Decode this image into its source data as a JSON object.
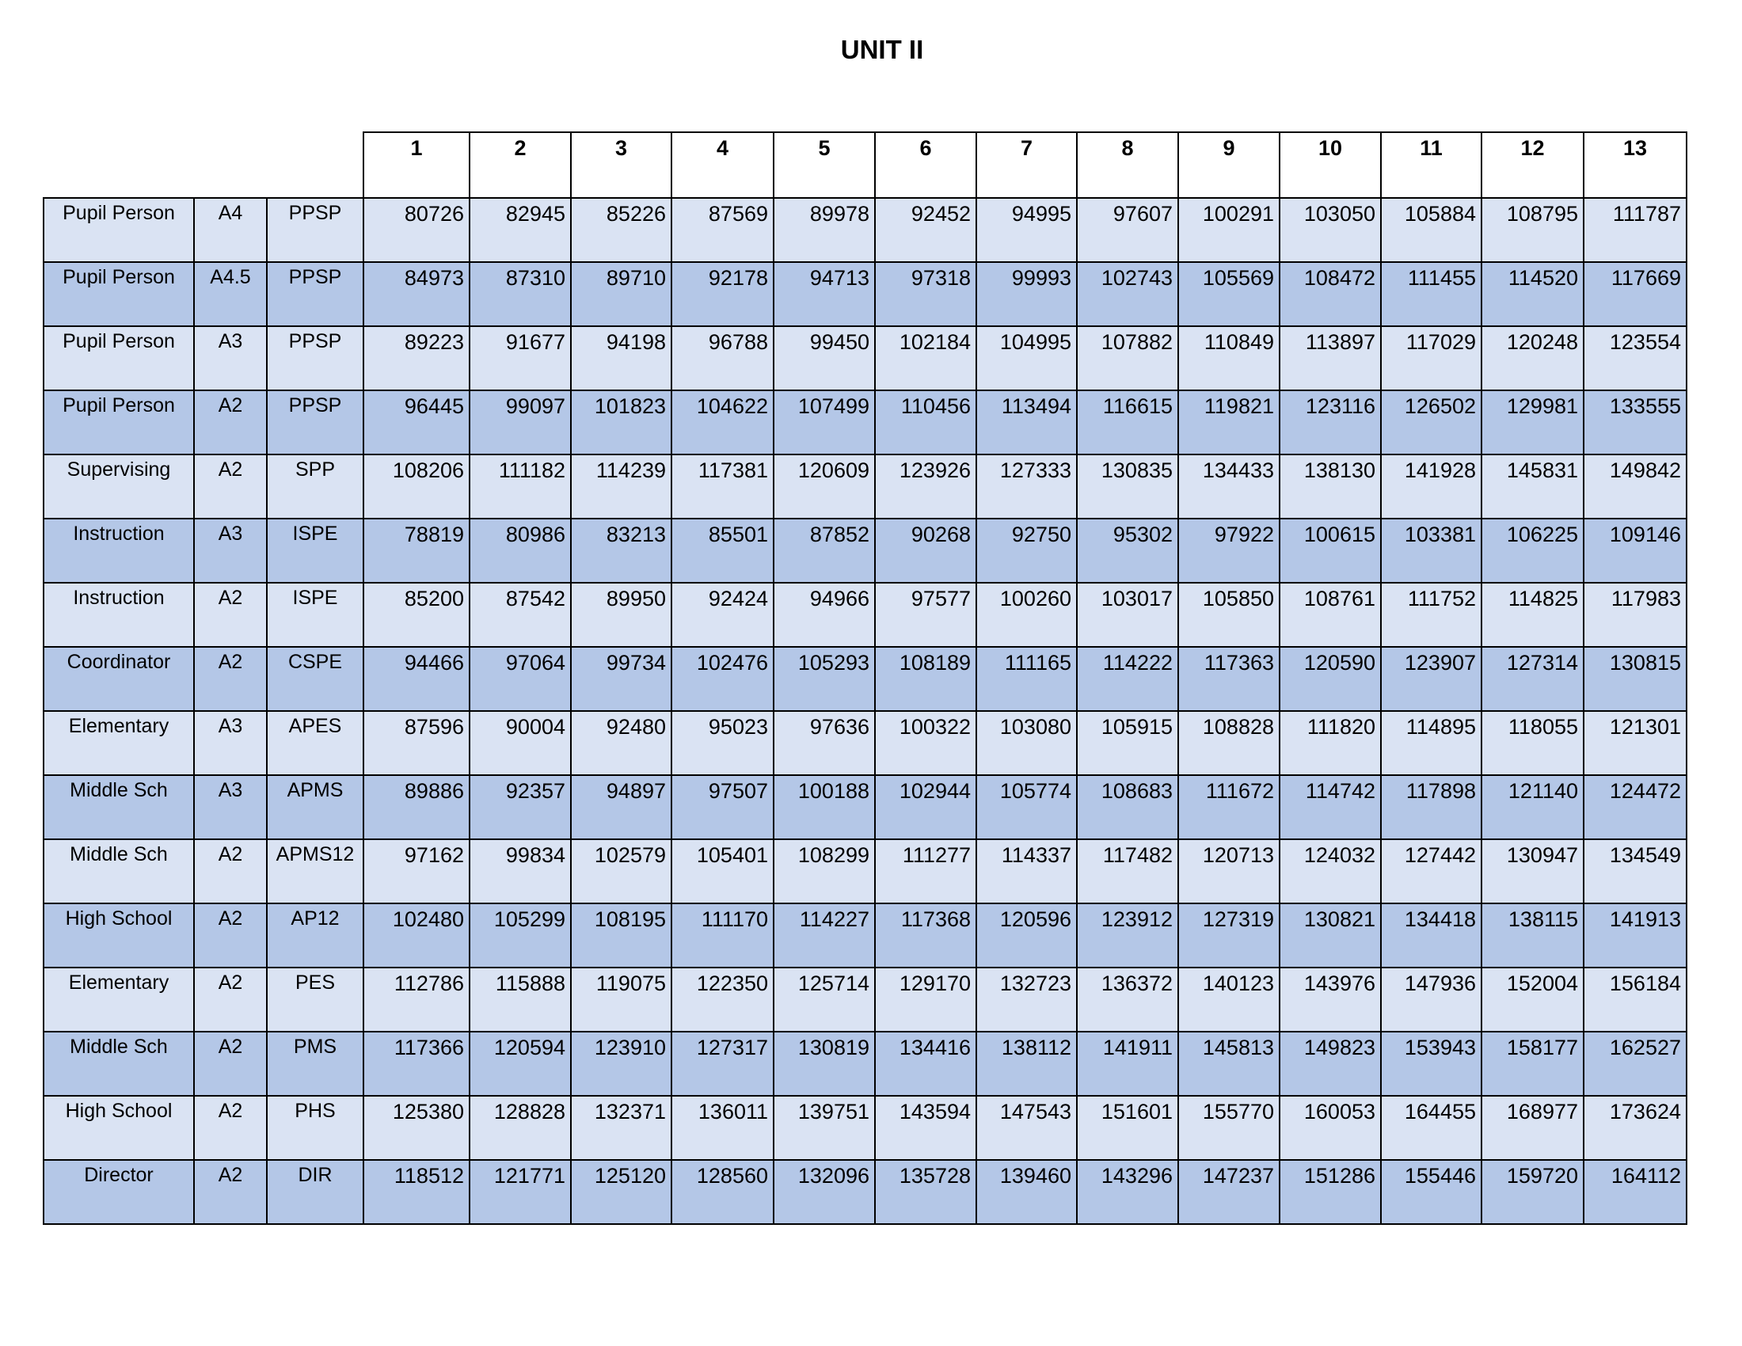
{
  "title": "UNIT II",
  "table": {
    "columns": [
      "1",
      "2",
      "3",
      "4",
      "5",
      "6",
      "7",
      "8",
      "9",
      "10",
      "11",
      "12",
      "13"
    ],
    "rows": [
      {
        "position": "Pupil Person",
        "level": "A4",
        "code": "PPSP",
        "values": [
          80726,
          82945,
          85226,
          87569,
          89978,
          92452,
          94995,
          97607,
          100291,
          103050,
          105884,
          108795,
          111787
        ]
      },
      {
        "position": "Pupil Person",
        "level": "A4.5",
        "code": "PPSP",
        "values": [
          84973,
          87310,
          89710,
          92178,
          94713,
          97318,
          99993,
          102743,
          105569,
          108472,
          111455,
          114520,
          117669
        ]
      },
      {
        "position": "Pupil Person",
        "level": "A3",
        "code": "PPSP",
        "values": [
          89223,
          91677,
          94198,
          96788,
          99450,
          102184,
          104995,
          107882,
          110849,
          113897,
          117029,
          120248,
          123554
        ]
      },
      {
        "position": "Pupil Person",
        "level": "A2",
        "code": "PPSP",
        "values": [
          96445,
          99097,
          101823,
          104622,
          107499,
          110456,
          113494,
          116615,
          119821,
          123116,
          126502,
          129981,
          133555
        ]
      },
      {
        "position": "Supervising",
        "level": "A2",
        "code": "SPP",
        "values": [
          108206,
          111182,
          114239,
          117381,
          120609,
          123926,
          127333,
          130835,
          134433,
          138130,
          141928,
          145831,
          149842
        ]
      },
      {
        "position": "Instruction",
        "level": "A3",
        "code": "ISPE",
        "values": [
          78819,
          80986,
          83213,
          85501,
          87852,
          90268,
          92750,
          95302,
          97922,
          100615,
          103381,
          106225,
          109146
        ]
      },
      {
        "position": "Instruction",
        "level": "A2",
        "code": "ISPE",
        "values": [
          85200,
          87542,
          89950,
          92424,
          94966,
          97577,
          100260,
          103017,
          105850,
          108761,
          111752,
          114825,
          117983
        ]
      },
      {
        "position": "Coordinator",
        "level": "A2",
        "code": "CSPE",
        "values": [
          94466,
          97064,
          99734,
          102476,
          105293,
          108189,
          111165,
          114222,
          117363,
          120590,
          123907,
          127314,
          130815
        ]
      },
      {
        "position": "Elementary",
        "level": "A3",
        "code": "APES",
        "values": [
          87596,
          90004,
          92480,
          95023,
          97636,
          100322,
          103080,
          105915,
          108828,
          111820,
          114895,
          118055,
          121301
        ]
      },
      {
        "position": "Middle Sch",
        "level": "A3",
        "code": "APMS",
        "values": [
          89886,
          92357,
          94897,
          97507,
          100188,
          102944,
          105774,
          108683,
          111672,
          114742,
          117898,
          121140,
          124472
        ]
      },
      {
        "position": "Middle Sch",
        "level": "A2",
        "code": "APMS12",
        "values": [
          97162,
          99834,
          102579,
          105401,
          108299,
          111277,
          114337,
          117482,
          120713,
          124032,
          127442,
          130947,
          134549
        ]
      },
      {
        "position": "High School",
        "level": "A2",
        "code": "AP12",
        "values": [
          102480,
          105299,
          108195,
          111170,
          114227,
          117368,
          120596,
          123912,
          127319,
          130821,
          134418,
          138115,
          141913
        ]
      },
      {
        "position": "Elementary",
        "level": "A2",
        "code": "PES",
        "values": [
          112786,
          115888,
          119075,
          122350,
          125714,
          129170,
          132723,
          136372,
          140123,
          143976,
          147936,
          152004,
          156184
        ]
      },
      {
        "position": "Middle Sch",
        "level": "A2",
        "code": "PMS",
        "values": [
          117366,
          120594,
          123910,
          127317,
          130819,
          134416,
          138112,
          141911,
          145813,
          149823,
          153943,
          158177,
          162527
        ]
      },
      {
        "position": "High School",
        "level": "A2",
        "code": "PHS",
        "values": [
          125380,
          128828,
          132371,
          136011,
          139751,
          143594,
          147543,
          151601,
          155770,
          160053,
          164455,
          168977,
          173624
        ]
      },
      {
        "position": "Director",
        "level": "A2",
        "code": "DIR",
        "values": [
          118512,
          121771,
          125120,
          128560,
          132096,
          135728,
          139460,
          143296,
          147237,
          151286,
          155446,
          159720,
          164112
        ]
      }
    ]
  }
}
